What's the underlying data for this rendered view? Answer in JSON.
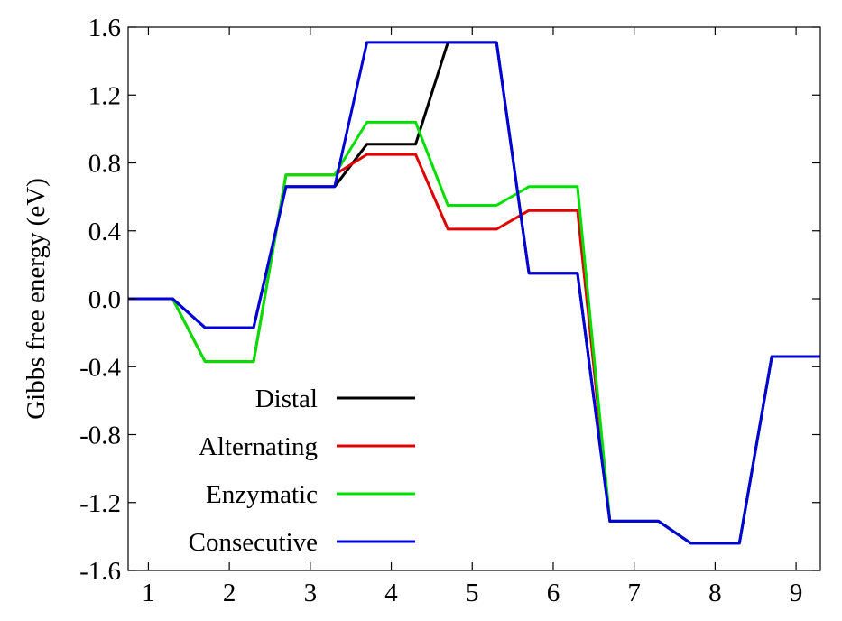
{
  "chart_data": {
    "type": "line",
    "xlabel": "",
    "ylabel": "Gibbs free energy (eV)",
    "xlim": [
      0.75,
      9.3
    ],
    "ylim": [
      -1.6,
      1.6
    ],
    "xticks": [
      1,
      2,
      3,
      4,
      5,
      6,
      7,
      8,
      9
    ],
    "yticks": [
      1.6,
      1.2,
      0.8,
      0.4,
      0.0,
      -0.4,
      -0.8,
      -1.2,
      -1.6
    ],
    "ytick_labels": [
      "1.6",
      "1.2",
      "0.8",
      "0.4",
      "0.0",
      "-0.4",
      "-0.8",
      "-1.2",
      "-1.6"
    ],
    "grid": false,
    "legend_position": "bottom-left",
    "series": [
      {
        "name": "Distal",
        "color": "#000000",
        "points": [
          [
            0.75,
            0.0
          ],
          [
            1.3,
            0.0
          ],
          [
            1.7,
            -0.17
          ],
          [
            2.3,
            -0.17
          ],
          [
            2.7,
            0.66
          ],
          [
            3.3,
            0.66
          ],
          [
            3.7,
            0.91
          ],
          [
            4.3,
            0.91
          ],
          [
            4.7,
            1.51
          ],
          [
            5.3,
            1.51
          ],
          [
            5.7,
            0.15
          ],
          [
            6.3,
            0.15
          ],
          [
            6.7,
            -1.31
          ],
          [
            7.3,
            -1.31
          ],
          [
            7.7,
            -1.44
          ],
          [
            8.3,
            -1.44
          ],
          [
            8.7,
            -0.34
          ],
          [
            9.3,
            -0.34
          ]
        ]
      },
      {
        "name": "Alternating",
        "color": "#e00000",
        "points": [
          [
            0.75,
            0.0
          ],
          [
            1.3,
            0.0
          ],
          [
            1.7,
            -0.37
          ],
          [
            2.3,
            -0.37
          ],
          [
            2.7,
            0.73
          ],
          [
            3.3,
            0.73
          ],
          [
            3.7,
            0.85
          ],
          [
            4.3,
            0.85
          ],
          [
            4.7,
            0.41
          ],
          [
            5.3,
            0.41
          ],
          [
            5.7,
            0.52
          ],
          [
            6.3,
            0.52
          ],
          [
            6.7,
            -1.31
          ],
          [
            7.3,
            -1.31
          ],
          [
            7.7,
            -1.44
          ],
          [
            8.3,
            -1.44
          ],
          [
            8.7,
            -0.34
          ],
          [
            9.3,
            -0.34
          ]
        ]
      },
      {
        "name": "Enzymatic",
        "color": "#00e000",
        "points": [
          [
            0.75,
            0.0
          ],
          [
            1.3,
            0.0
          ],
          [
            1.7,
            -0.37
          ],
          [
            2.3,
            -0.37
          ],
          [
            2.7,
            0.73
          ],
          [
            3.3,
            0.73
          ],
          [
            3.7,
            1.04
          ],
          [
            4.3,
            1.04
          ],
          [
            4.7,
            0.55
          ],
          [
            5.3,
            0.55
          ],
          [
            5.7,
            0.66
          ],
          [
            6.3,
            0.66
          ],
          [
            6.7,
            -1.31
          ],
          [
            7.3,
            -1.31
          ],
          [
            7.7,
            -1.44
          ],
          [
            8.3,
            -1.44
          ],
          [
            8.7,
            -0.34
          ],
          [
            9.3,
            -0.34
          ]
        ]
      },
      {
        "name": "Consecutive",
        "color": "#0000d8",
        "points": [
          [
            0.75,
            0.0
          ],
          [
            1.3,
            0.0
          ],
          [
            1.7,
            -0.17
          ],
          [
            2.3,
            -0.17
          ],
          [
            2.7,
            0.66
          ],
          [
            3.3,
            0.66
          ],
          [
            3.7,
            1.51
          ],
          [
            4.3,
            1.51
          ],
          [
            4.7,
            1.51
          ],
          [
            5.3,
            1.51
          ],
          [
            5.7,
            0.15
          ],
          [
            6.3,
            0.15
          ],
          [
            6.7,
            -1.31
          ],
          [
            7.3,
            -1.31
          ],
          [
            7.7,
            -1.44
          ],
          [
            8.3,
            -1.44
          ],
          [
            8.7,
            -0.34
          ],
          [
            9.3,
            -0.34
          ]
        ]
      }
    ]
  }
}
